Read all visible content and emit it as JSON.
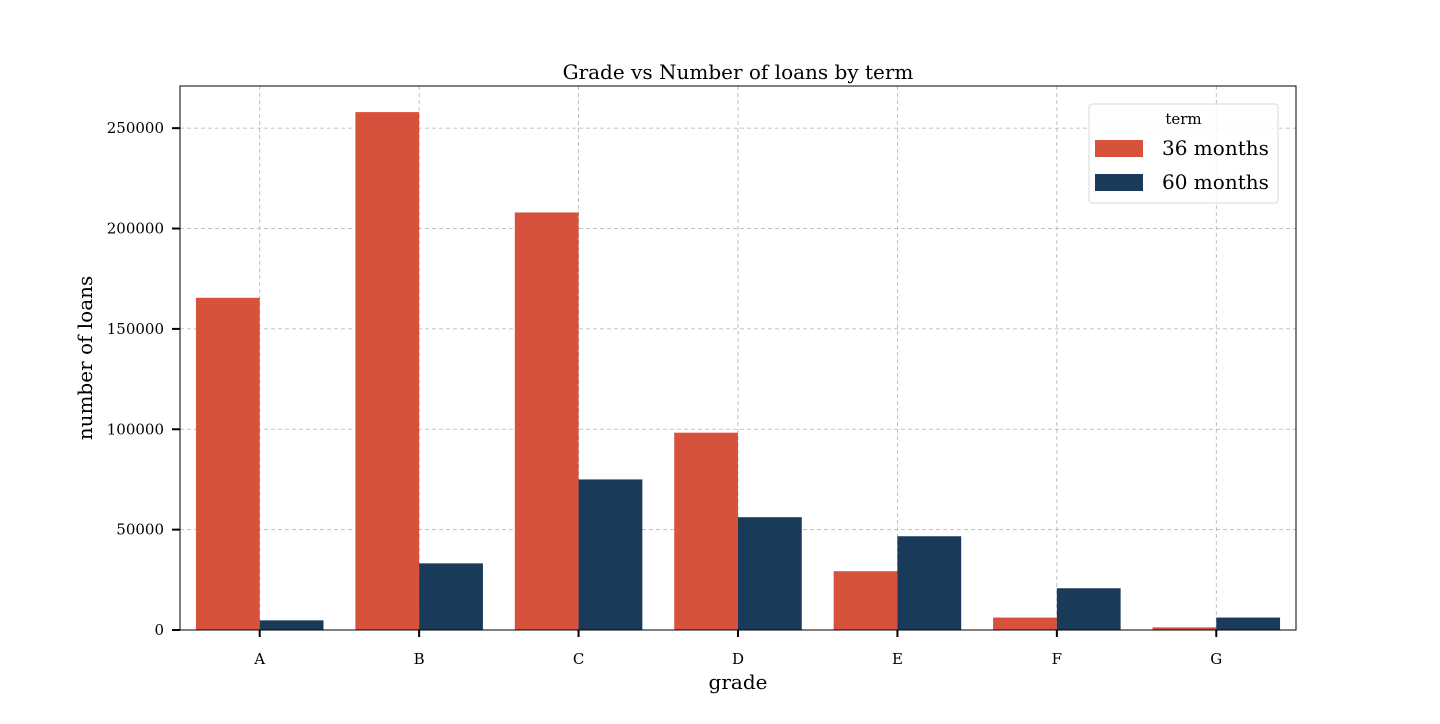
{
  "chart_data": {
    "type": "bar",
    "title": "Grade vs Number of loans by term",
    "xlabel": "grade",
    "ylabel": "number of loans",
    "categories": [
      "A",
      "B",
      "C",
      "D",
      "E",
      "F",
      "G"
    ],
    "series": [
      {
        "name": "36 months",
        "color": "#d6523c",
        "values": [
          165500,
          258000,
          208000,
          98300,
          29300,
          6200,
          1300
        ]
      },
      {
        "name": "60 months",
        "color": "#193a58",
        "values": [
          4800,
          33200,
          75000,
          56200,
          46700,
          20800,
          6200
        ]
      }
    ],
    "ylim": [
      0,
      271000
    ],
    "yticks": [
      0,
      50000,
      100000,
      150000,
      200000,
      250000
    ],
    "grid": true,
    "legend": {
      "title": "term",
      "placement": "top-right"
    }
  }
}
